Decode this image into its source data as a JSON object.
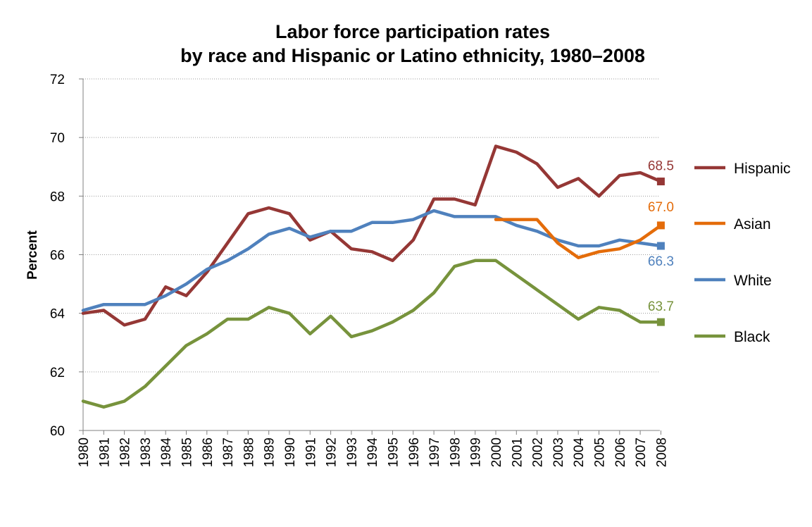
{
  "chart_data": {
    "type": "line",
    "title": [
      "Labor force participation rates",
      "by race and Hispanic or Latino ethnicity, 1980–2008"
    ],
    "xlabel": "",
    "ylabel": "Percent",
    "ylim": [
      60,
      72
    ],
    "yticks": [
      "60",
      "62",
      "64",
      "66",
      "68",
      "70",
      "72"
    ],
    "grid": "horizontal dotted",
    "legend_position": "right",
    "x": [
      "1980",
      "1981",
      "1982",
      "1983",
      "1984",
      "1985",
      "1986",
      "1987",
      "1988",
      "1989",
      "1990",
      "1991",
      "1992",
      "1993",
      "1994",
      "1995",
      "1996",
      "1997",
      "1998",
      "1999",
      "2000",
      "2001",
      "2002",
      "2003",
      "2004",
      "2005",
      "2006",
      "2007",
      "2008"
    ],
    "series": [
      {
        "name": "Hispanic",
        "color": "#953735",
        "end_label": "68.5",
        "values": [
          64.0,
          64.1,
          63.6,
          63.8,
          64.9,
          64.6,
          65.4,
          66.4,
          67.4,
          67.6,
          67.4,
          66.5,
          66.8,
          66.2,
          66.1,
          65.8,
          66.5,
          67.9,
          67.9,
          67.7,
          69.7,
          69.5,
          69.1,
          68.3,
          68.6,
          68.0,
          68.7,
          68.8,
          68.5
        ]
      },
      {
        "name": "Asian",
        "color": "#E46C0A",
        "end_label": "67.0",
        "values": [
          null,
          null,
          null,
          null,
          null,
          null,
          null,
          null,
          null,
          null,
          null,
          null,
          null,
          null,
          null,
          null,
          null,
          null,
          null,
          null,
          67.2,
          67.2,
          67.2,
          66.4,
          65.9,
          66.1,
          66.2,
          66.5,
          67.0
        ]
      },
      {
        "name": "White",
        "color": "#4F81BD",
        "end_label": "66.3",
        "values": [
          64.1,
          64.3,
          64.3,
          64.3,
          64.6,
          65.0,
          65.5,
          65.8,
          66.2,
          66.7,
          66.9,
          66.6,
          66.8,
          66.8,
          67.1,
          67.1,
          67.2,
          67.5,
          67.3,
          67.3,
          67.3,
          67.0,
          66.8,
          66.5,
          66.3,
          66.3,
          66.5,
          66.4,
          66.3
        ]
      },
      {
        "name": "Black",
        "color": "#77933C",
        "end_label": "63.7",
        "values": [
          61.0,
          60.8,
          61.0,
          61.5,
          62.2,
          62.9,
          63.3,
          63.8,
          63.8,
          64.2,
          64.0,
          63.3,
          63.9,
          63.2,
          63.4,
          63.7,
          64.1,
          64.7,
          65.6,
          65.8,
          65.8,
          65.3,
          64.8,
          64.3,
          63.8,
          64.2,
          64.1,
          63.7,
          63.7
        ]
      }
    ]
  }
}
